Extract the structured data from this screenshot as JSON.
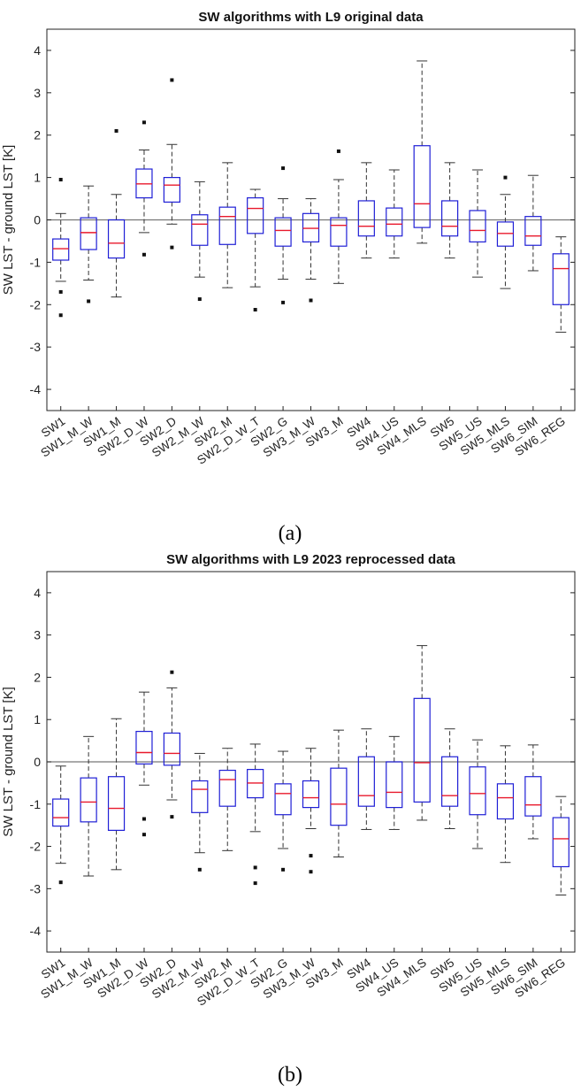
{
  "figure": {
    "panels": [
      {
        "caption": "(a)",
        "chart_data": {
          "type": "box",
          "title": "SW algorithms with L9 original data",
          "ylabel": "SW LST - ground LST [K]",
          "xlabel": "",
          "ylim": [
            -4.5,
            4.5
          ],
          "yticks": [
            -4,
            -3,
            -2,
            -1,
            0,
            1,
            2,
            3,
            4
          ],
          "reference_line": 0,
          "grid": false,
          "colors": {
            "box": "#1f1fd6",
            "median": "#e8192c",
            "whisker": "#333333",
            "outlier": "#111111",
            "axis": "#222222",
            "reference": "#777777"
          },
          "categories": [
            "SW1",
            "SW1_M_W",
            "SW1_M",
            "SW2_D_W",
            "SW2_D",
            "SW2_M_W",
            "SW2_M",
            "SW2_D_W_T",
            "SW2_G",
            "SW3_M_W",
            "SW3_M",
            "SW4",
            "SW4_US",
            "SW4_MLS",
            "SW5",
            "SW5_US",
            "SW5_MLS",
            "SW6_SIM",
            "SW6_REG"
          ],
          "boxes": [
            {
              "whislo": -1.45,
              "q1": -0.95,
              "med": -0.68,
              "q3": -0.45,
              "whishi": 0.15,
              "fliers": [
                0.95,
                -1.7,
                -2.25
              ]
            },
            {
              "whislo": -1.42,
              "q1": -0.7,
              "med": -0.3,
              "q3": 0.05,
              "whishi": 0.8,
              "fliers": [
                -1.92
              ]
            },
            {
              "whislo": -1.82,
              "q1": -0.9,
              "med": -0.55,
              "q3": 0.0,
              "whishi": 0.6,
              "fliers": [
                2.1
              ]
            },
            {
              "whislo": -0.3,
              "q1": 0.52,
              "med": 0.85,
              "q3": 1.2,
              "whishi": 1.65,
              "fliers": [
                2.3,
                -0.82
              ]
            },
            {
              "whislo": -0.1,
              "q1": 0.42,
              "med": 0.82,
              "q3": 1.0,
              "whishi": 1.78,
              "fliers": [
                3.3,
                -0.65
              ]
            },
            {
              "whislo": -1.35,
              "q1": -0.6,
              "med": -0.1,
              "q3": 0.12,
              "whishi": 0.9,
              "fliers": [
                -1.87
              ]
            },
            {
              "whislo": -1.6,
              "q1": -0.58,
              "med": 0.08,
              "q3": 0.3,
              "whishi": 1.35,
              "fliers": []
            },
            {
              "whislo": -1.58,
              "q1": -0.32,
              "med": 0.27,
              "q3": 0.52,
              "whishi": 0.72,
              "fliers": [
                -2.12
              ]
            },
            {
              "whislo": -1.4,
              "q1": -0.62,
              "med": -0.25,
              "q3": 0.05,
              "whishi": 0.5,
              "fliers": [
                1.22,
                -1.95
              ]
            },
            {
              "whislo": -1.4,
              "q1": -0.52,
              "med": -0.2,
              "q3": 0.15,
              "whishi": 0.5,
              "fliers": [
                -1.9
              ]
            },
            {
              "whislo": -1.5,
              "q1": -0.62,
              "med": -0.13,
              "q3": 0.05,
              "whishi": 0.95,
              "fliers": [
                1.62
              ]
            },
            {
              "whislo": -0.9,
              "q1": -0.38,
              "med": -0.15,
              "q3": 0.45,
              "whishi": 1.35,
              "fliers": []
            },
            {
              "whislo": -0.9,
              "q1": -0.38,
              "med": -0.1,
              "q3": 0.28,
              "whishi": 1.18,
              "fliers": []
            },
            {
              "whislo": -0.55,
              "q1": -0.18,
              "med": 0.38,
              "q3": 1.75,
              "whishi": 3.75,
              "fliers": []
            },
            {
              "whislo": -0.9,
              "q1": -0.38,
              "med": -0.15,
              "q3": 0.45,
              "whishi": 1.35,
              "fliers": []
            },
            {
              "whislo": -1.35,
              "q1": -0.52,
              "med": -0.25,
              "q3": 0.22,
              "whishi": 1.18,
              "fliers": []
            },
            {
              "whislo": -1.62,
              "q1": -0.62,
              "med": -0.32,
              "q3": -0.05,
              "whishi": 0.6,
              "fliers": [
                1.0
              ]
            },
            {
              "whislo": -1.2,
              "q1": -0.6,
              "med": -0.38,
              "q3": 0.08,
              "whishi": 1.05,
              "fliers": []
            },
            {
              "whislo": -2.65,
              "q1": -2.0,
              "med": -1.15,
              "q3": -0.8,
              "whishi": -0.4,
              "fliers": []
            }
          ]
        }
      },
      {
        "caption": "(b)",
        "chart_data": {
          "type": "box",
          "title": "SW algorithms with L9 2023 reprocessed data",
          "ylabel": "SW LST - ground LST [K]",
          "xlabel": "",
          "ylim": [
            -4.5,
            4.5
          ],
          "yticks": [
            -4,
            -3,
            -2,
            -1,
            0,
            1,
            2,
            3,
            4
          ],
          "reference_line": 0,
          "grid": false,
          "colors": {
            "box": "#1f1fd6",
            "median": "#e8192c",
            "whisker": "#333333",
            "outlier": "#111111",
            "axis": "#222222",
            "reference": "#777777"
          },
          "categories": [
            "SW1",
            "SW1_M_W",
            "SW1_M",
            "SW2_D_W",
            "SW2_D",
            "SW2_M_W",
            "SW2_M",
            "SW2_D_W_T",
            "SW2_G",
            "SW3_M_W",
            "SW3_M",
            "SW4",
            "SW4_US",
            "SW4_MLS",
            "SW5",
            "SW5_US",
            "SW5_MLS",
            "SW6_SIM",
            "SW6_REG"
          ],
          "boxes": [
            {
              "whislo": -2.4,
              "q1": -1.52,
              "med": -1.32,
              "q3": -0.88,
              "whishi": -0.1,
              "fliers": [
                -2.85
              ]
            },
            {
              "whislo": -2.7,
              "q1": -1.42,
              "med": -0.95,
              "q3": -0.38,
              "whishi": 0.6,
              "fliers": []
            },
            {
              "whislo": -2.55,
              "q1": -1.62,
              "med": -1.1,
              "q3": -0.35,
              "whishi": 1.02,
              "fliers": []
            },
            {
              "whislo": -0.55,
              "q1": -0.05,
              "med": 0.22,
              "q3": 0.72,
              "whishi": 1.65,
              "fliers": [
                -1.35,
                -1.72
              ]
            },
            {
              "whislo": -0.9,
              "q1": -0.08,
              "med": 0.2,
              "q3": 0.68,
              "whishi": 1.75,
              "fliers": [
                2.12,
                -1.3
              ]
            },
            {
              "whislo": -2.15,
              "q1": -1.2,
              "med": -0.65,
              "q3": -0.45,
              "whishi": 0.2,
              "fliers": [
                -2.55
              ]
            },
            {
              "whislo": -2.1,
              "q1": -1.05,
              "med": -0.42,
              "q3": -0.2,
              "whishi": 0.32,
              "fliers": []
            },
            {
              "whislo": -1.65,
              "q1": -0.85,
              "med": -0.5,
              "q3": -0.18,
              "whishi": 0.42,
              "fliers": [
                -2.5,
                -2.87
              ]
            },
            {
              "whislo": -2.05,
              "q1": -1.25,
              "med": -0.75,
              "q3": -0.52,
              "whishi": 0.25,
              "fliers": [
                -2.55
              ]
            },
            {
              "whislo": -1.58,
              "q1": -1.08,
              "med": -0.85,
              "q3": -0.45,
              "whishi": 0.32,
              "fliers": [
                -2.22,
                -2.6
              ]
            },
            {
              "whislo": -2.25,
              "q1": -1.5,
              "med": -1.0,
              "q3": -0.15,
              "whishi": 0.75,
              "fliers": []
            },
            {
              "whislo": -1.6,
              "q1": -1.05,
              "med": -0.8,
              "q3": 0.12,
              "whishi": 0.78,
              "fliers": []
            },
            {
              "whislo": -1.6,
              "q1": -1.08,
              "med": -0.72,
              "q3": 0.0,
              "whishi": 0.6,
              "fliers": []
            },
            {
              "whislo": -1.38,
              "q1": -0.95,
              "med": -0.02,
              "q3": 1.5,
              "whishi": 2.75,
              "fliers": []
            },
            {
              "whislo": -1.58,
              "q1": -1.05,
              "med": -0.8,
              "q3": 0.12,
              "whishi": 0.78,
              "fliers": []
            },
            {
              "whislo": -2.05,
              "q1": -1.25,
              "med": -0.75,
              "q3": -0.12,
              "whishi": 0.52,
              "fliers": []
            },
            {
              "whislo": -2.38,
              "q1": -1.35,
              "med": -0.85,
              "q3": -0.52,
              "whishi": 0.38,
              "fliers": []
            },
            {
              "whislo": -1.82,
              "q1": -1.28,
              "med": -1.02,
              "q3": -0.35,
              "whishi": 0.4,
              "fliers": []
            },
            {
              "whislo": -3.15,
              "q1": -2.48,
              "med": -1.82,
              "q3": -1.32,
              "whishi": -0.82,
              "fliers": []
            }
          ]
        }
      }
    ]
  }
}
